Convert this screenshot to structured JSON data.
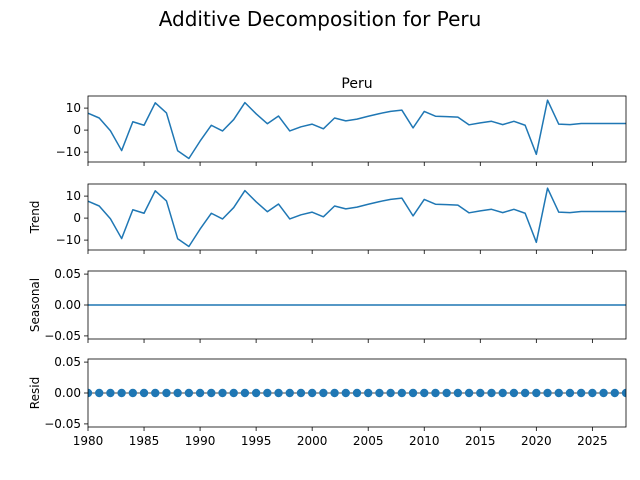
{
  "figure": {
    "suptitle": "Additive Decomposition for Peru"
  },
  "chart_data": {
    "type": "line",
    "x": [
      1980,
      1981,
      1982,
      1983,
      1984,
      1985,
      1986,
      1987,
      1988,
      1989,
      1990,
      1991,
      1992,
      1993,
      1994,
      1995,
      1996,
      1997,
      1998,
      1999,
      2000,
      2001,
      2002,
      2003,
      2004,
      2005,
      2006,
      2007,
      2008,
      2009,
      2010,
      2011,
      2012,
      2013,
      2014,
      2015,
      2016,
      2017,
      2018,
      2019,
      2020,
      2021,
      2022,
      2023,
      2024,
      2025,
      2026,
      2027,
      2028
    ],
    "xlim": [
      1980,
      2028
    ],
    "x_ticks": [
      1980,
      1985,
      1990,
      1995,
      2000,
      2005,
      2010,
      2015,
      2020,
      2025
    ],
    "line_color": "#1f77b4",
    "panels": [
      {
        "key": "observed",
        "title": "Peru",
        "ylabel": "",
        "style": "line",
        "ylim": [
          -14.5,
          15.5
        ],
        "y_ticks": [
          -10,
          0,
          10
        ],
        "y_tick_labels": [
          "−10",
          "0",
          "10"
        ],
        "values": [
          7.7,
          5.5,
          -0.3,
          -9.3,
          3.8,
          2.2,
          12.4,
          7.8,
          -9.4,
          -12.9,
          -5.0,
          2.2,
          -0.4,
          4.8,
          12.5,
          7.4,
          2.9,
          6.4,
          -0.4,
          1.5,
          2.7,
          0.6,
          5.5,
          4.2,
          5.0,
          6.3,
          7.5,
          8.5,
          9.1,
          1.0,
          8.5,
          6.3,
          6.1,
          5.9,
          2.4,
          3.3,
          4.0,
          2.5,
          4.0,
          2.2,
          -11.0,
          13.6,
          2.7,
          2.5,
          3.0,
          3.0,
          3.0,
          3.0,
          3.0
        ]
      },
      {
        "key": "trend",
        "title": "",
        "ylabel": "Trend",
        "style": "line",
        "ylim": [
          -14.5,
          15.5
        ],
        "y_ticks": [
          -10,
          0,
          10
        ],
        "y_tick_labels": [
          "−10",
          "0",
          "10"
        ],
        "values": [
          7.7,
          5.5,
          -0.3,
          -9.3,
          3.8,
          2.2,
          12.4,
          7.8,
          -9.4,
          -12.9,
          -5.0,
          2.2,
          -0.4,
          4.8,
          12.5,
          7.4,
          2.9,
          6.4,
          -0.4,
          1.5,
          2.7,
          0.6,
          5.5,
          4.2,
          5.0,
          6.3,
          7.5,
          8.5,
          9.1,
          1.0,
          8.5,
          6.3,
          6.1,
          5.9,
          2.4,
          3.3,
          4.0,
          2.5,
          4.0,
          2.2,
          -11.0,
          13.6,
          2.7,
          2.5,
          3.0,
          3.0,
          3.0,
          3.0,
          3.0
        ]
      },
      {
        "key": "seasonal",
        "title": "",
        "ylabel": "Seasonal",
        "style": "line",
        "ylim": [
          -0.055,
          0.055
        ],
        "y_ticks": [
          -0.05,
          0.0,
          0.05
        ],
        "y_tick_labels": [
          "−0.05",
          "0.00",
          "0.05"
        ],
        "values": [
          0,
          0,
          0,
          0,
          0,
          0,
          0,
          0,
          0,
          0,
          0,
          0,
          0,
          0,
          0,
          0,
          0,
          0,
          0,
          0,
          0,
          0,
          0,
          0,
          0,
          0,
          0,
          0,
          0,
          0,
          0,
          0,
          0,
          0,
          0,
          0,
          0,
          0,
          0,
          0,
          0,
          0,
          0,
          0,
          0,
          0,
          0,
          0,
          0
        ]
      },
      {
        "key": "resid",
        "title": "",
        "ylabel": "Resid",
        "style": "scatter",
        "ylim": [
          -0.055,
          0.055
        ],
        "y_ticks": [
          -0.05,
          0.0,
          0.05
        ],
        "y_tick_labels": [
          "−0.05",
          "0.00",
          "0.05"
        ],
        "baseline": 0,
        "values": [
          0,
          0,
          0,
          0,
          0,
          0,
          0,
          0,
          0,
          0,
          0,
          0,
          0,
          0,
          0,
          0,
          0,
          0,
          0,
          0,
          0,
          0,
          0,
          0,
          0,
          0,
          0,
          0,
          0,
          0,
          0,
          0,
          0,
          0,
          0,
          0,
          0,
          0,
          0,
          0,
          0,
          0,
          0,
          0,
          0,
          0,
          0,
          0,
          0
        ]
      }
    ]
  }
}
